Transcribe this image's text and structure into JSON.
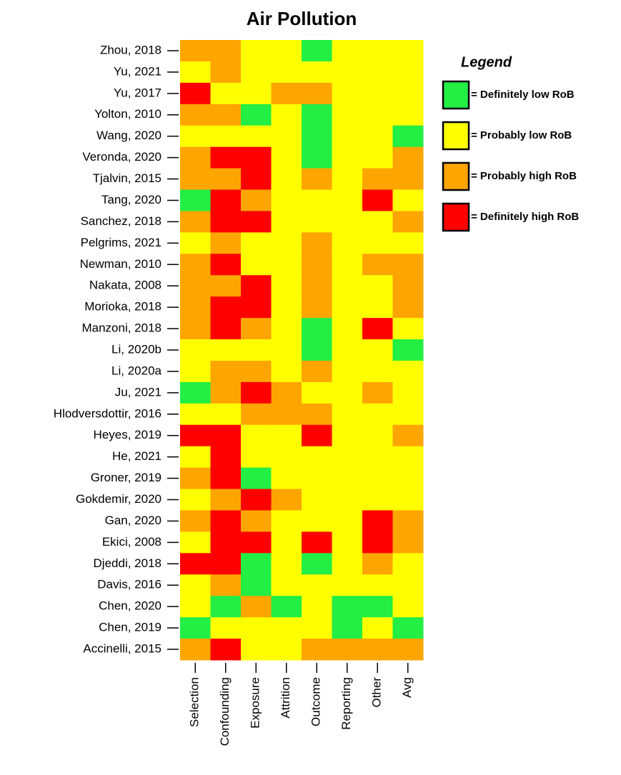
{
  "chart_data": {
    "type": "heatmap",
    "title": "Air Pollution",
    "rows": [
      "Zhou, 2018",
      "Yu, 2021",
      "Yu, 2017",
      "Yolton, 2010",
      "Wang, 2020",
      "Veronda, 2020",
      "Tjalvin, 2015",
      "Tang, 2020",
      "Sanchez, 2018",
      "Pelgrims, 2021",
      "Newman, 2010",
      "Nakata, 2008",
      "Morioka, 2018",
      "Manzoni, 2018",
      "Li, 2020b",
      "Li, 2020a",
      "Ju, 2021",
      "Hlodversdottir, 2016",
      "Heyes, 2019",
      "He, 2021",
      "Groner, 2019",
      "Gokdemir, 2020",
      "Gan, 2020",
      "Ekici, 2008",
      "Djeddi, 2018",
      "Davis, 2016",
      "Chen, 2020",
      "Chen, 2019",
      "Accinelli, 2015"
    ],
    "columns": [
      "Selection",
      "Confounding",
      "Exposure",
      "Attrition",
      "Outcome",
      "Reporting",
      "Other",
      "Avg"
    ],
    "cells": [
      [
        "#ffa500",
        "#ffa500",
        "#ffff00",
        "#ffff00",
        "#22ee44",
        "#ffff00",
        "#ffff00",
        "#ffff00"
      ],
      [
        "#ffff00",
        "#ffa500",
        "#ffff00",
        "#ffff00",
        "#ffff00",
        "#ffff00",
        "#ffff00",
        "#ffff00"
      ],
      [
        "#ff0000",
        "#ffff00",
        "#ffff00",
        "#ffa500",
        "#ffa500",
        "#ffff00",
        "#ffff00",
        "#ffff00"
      ],
      [
        "#ffa500",
        "#ffa500",
        "#22ee44",
        "#ffff00",
        "#22ee44",
        "#ffff00",
        "#ffff00",
        "#ffff00"
      ],
      [
        "#ffff00",
        "#ffff00",
        "#ffff00",
        "#ffff00",
        "#22ee44",
        "#ffff00",
        "#ffff00",
        "#22ee44"
      ],
      [
        "#ffa500",
        "#ff0000",
        "#ff0000",
        "#ffff00",
        "#22ee44",
        "#ffff00",
        "#ffff00",
        "#ffa500"
      ],
      [
        "#ffa500",
        "#ffa500",
        "#ff0000",
        "#ffff00",
        "#ffa500",
        "#ffff00",
        "#ffa500",
        "#ffa500"
      ],
      [
        "#22ee44",
        "#ff0000",
        "#ffa500",
        "#ffff00",
        "#ffff00",
        "#ffff00",
        "#ff0000",
        "#ffff00"
      ],
      [
        "#ffa500",
        "#ff0000",
        "#ff0000",
        "#ffff00",
        "#ffff00",
        "#ffff00",
        "#ffff00",
        "#ffa500"
      ],
      [
        "#ffff00",
        "#ffa500",
        "#ffff00",
        "#ffff00",
        "#ffa500",
        "#ffff00",
        "#ffff00",
        "#ffff00"
      ],
      [
        "#ffa500",
        "#ff0000",
        "#ffff00",
        "#ffff00",
        "#ffa500",
        "#ffff00",
        "#ffa500",
        "#ffa500"
      ],
      [
        "#ffa500",
        "#ffa500",
        "#ff0000",
        "#ffff00",
        "#ffa500",
        "#ffff00",
        "#ffff00",
        "#ffa500"
      ],
      [
        "#ffa500",
        "#ff0000",
        "#ff0000",
        "#ffff00",
        "#ffa500",
        "#ffff00",
        "#ffff00",
        "#ffa500"
      ],
      [
        "#ffa500",
        "#ff0000",
        "#ffa500",
        "#ffff00",
        "#22ee44",
        "#ffff00",
        "#ff0000",
        "#ffff00"
      ],
      [
        "#ffff00",
        "#ffff00",
        "#ffff00",
        "#ffff00",
        "#22ee44",
        "#ffff00",
        "#ffff00",
        "#22ee44"
      ],
      [
        "#ffff00",
        "#ffa500",
        "#ffa500",
        "#ffff00",
        "#ffa500",
        "#ffff00",
        "#ffff00",
        "#ffff00"
      ],
      [
        "#22ee44",
        "#ffa500",
        "#ff0000",
        "#ffa500",
        "#ffff00",
        "#ffff00",
        "#ffa500",
        "#ffff00"
      ],
      [
        "#ffff00",
        "#ffff00",
        "#ffa500",
        "#ffa500",
        "#ffa500",
        "#ffff00",
        "#ffff00",
        "#ffff00"
      ],
      [
        "#ff0000",
        "#ff0000",
        "#ffff00",
        "#ffff00",
        "#ff0000",
        "#ffff00",
        "#ffff00",
        "#ffa500"
      ],
      [
        "#ffff00",
        "#ff0000",
        "#ffff00",
        "#ffff00",
        "#ffff00",
        "#ffff00",
        "#ffff00",
        "#ffff00"
      ],
      [
        "#ffa500",
        "#ff0000",
        "#22ee44",
        "#ffff00",
        "#ffff00",
        "#ffff00",
        "#ffff00",
        "#ffff00"
      ],
      [
        "#ffff00",
        "#ffa500",
        "#ff0000",
        "#ffa500",
        "#ffff00",
        "#ffff00",
        "#ffff00",
        "#ffff00"
      ],
      [
        "#ffa500",
        "#ff0000",
        "#ffa500",
        "#ffff00",
        "#ffff00",
        "#ffff00",
        "#ff0000",
        "#ffa500"
      ],
      [
        "#ffff00",
        "#ff0000",
        "#ff0000",
        "#ffff00",
        "#ff0000",
        "#ffff00",
        "#ff0000",
        "#ffa500"
      ],
      [
        "#ff0000",
        "#ff0000",
        "#22ee44",
        "#ffff00",
        "#22ee44",
        "#ffff00",
        "#ffa500",
        "#ffff00"
      ],
      [
        "#ffff00",
        "#ffa500",
        "#22ee44",
        "#ffff00",
        "#ffff00",
        "#ffff00",
        "#ffff00",
        "#ffff00"
      ],
      [
        "#ffff00",
        "#22ee44",
        "#ffa500",
        "#22ee44",
        "#ffff00",
        "#22ee44",
        "#22ee44",
        "#ffff00"
      ],
      [
        "#22ee44",
        "#ffff00",
        "#ffff00",
        "#ffff00",
        "#ffff00",
        "#22ee44",
        "#ffff00",
        "#22ee44"
      ],
      [
        "#ffa500",
        "#ff0000",
        "#ffff00",
        "#ffff00",
        "#ffa500",
        "#ffa500",
        "#ffa500",
        "#ffa500"
      ]
    ],
    "legend": {
      "title": "Legend",
      "entries": [
        {
          "label": "= Definitely low RoB",
          "color": "#22ee44"
        },
        {
          "label": "= Probably low RoB",
          "color": "#ffff00"
        },
        {
          "label": "= Probably high RoB",
          "color": "#ffa500"
        },
        {
          "label": "= Definitely high RoB",
          "color": "#ff0000"
        }
      ]
    }
  }
}
